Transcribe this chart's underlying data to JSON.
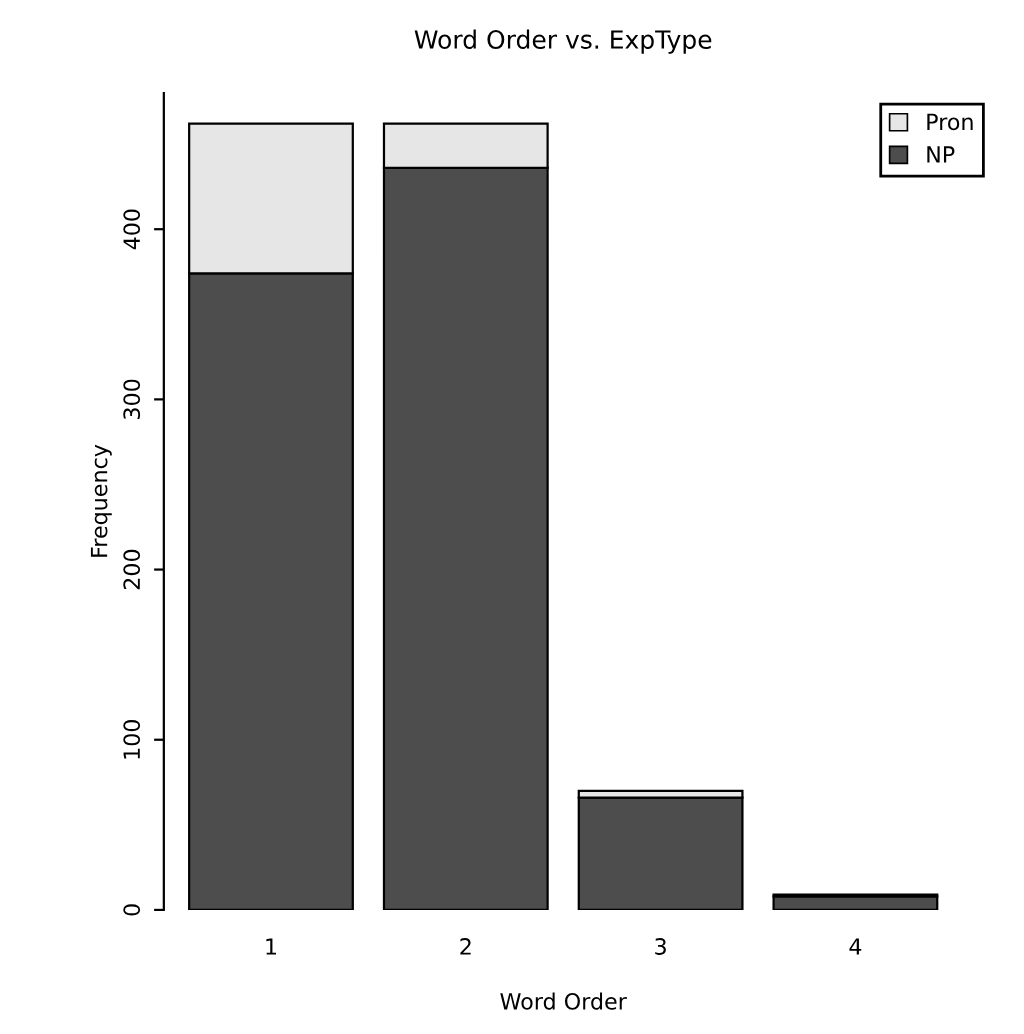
{
  "chart_data": {
    "type": "bar",
    "title": "Word Order vs. ExpType",
    "xlabel": "Word Order",
    "ylabel": "Frequency",
    "categories": [
      "1",
      "2",
      "3",
      "4"
    ],
    "stacked": true,
    "series": [
      {
        "name": "NP",
        "color": "#4d4d4d",
        "values": [
          374,
          436,
          66,
          8
        ]
      },
      {
        "name": "Pron",
        "color": "#e6e6e6",
        "values": [
          88,
          26,
          4,
          1
        ]
      }
    ],
    "ylim": [
      0,
      480
    ],
    "yticks": [
      0,
      100,
      200,
      300,
      400
    ],
    "legend": "top right",
    "grid": false
  }
}
